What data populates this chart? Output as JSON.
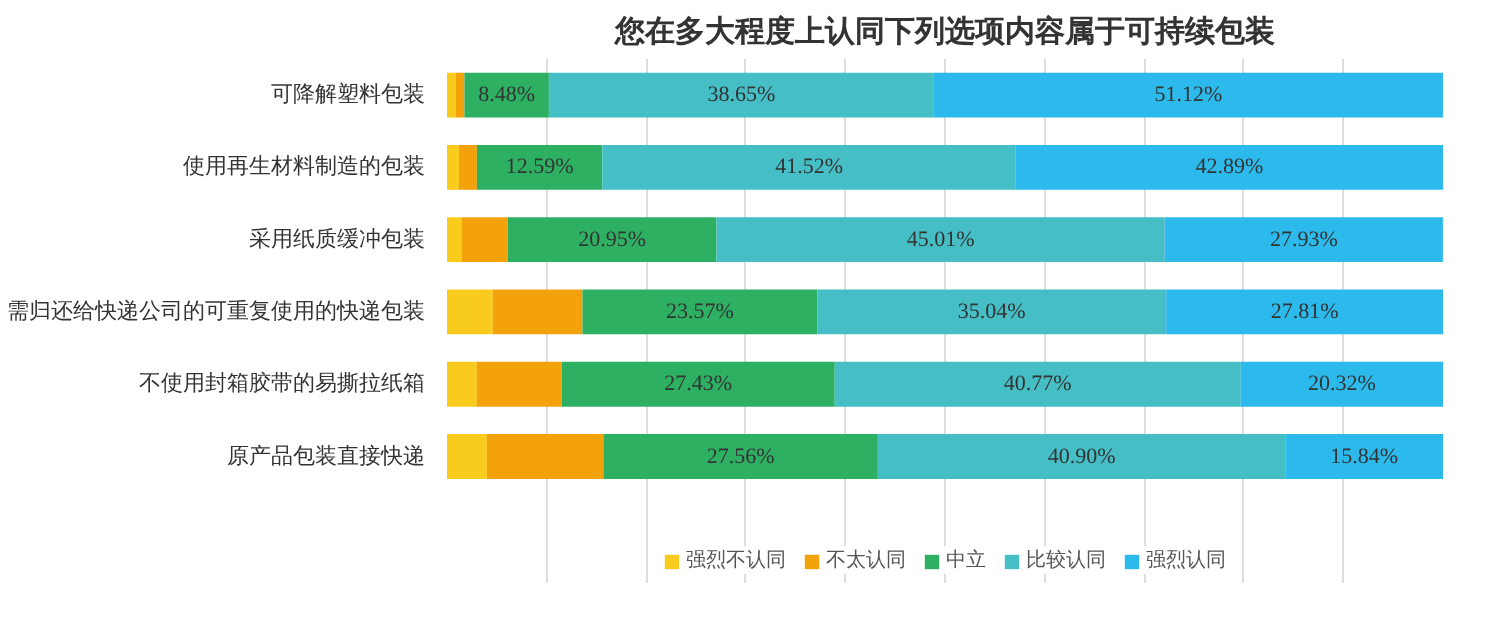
{
  "chart_data": {
    "type": "bar",
    "orientation": "horizontal",
    "stacked": true,
    "title": "您在多大程度上认同下列选项内容属于可持续包装",
    "categories": [
      "可降解塑料包装",
      "使用再生材料制造的包装",
      "采用纸质缓冲包装",
      "需归还给快递公司的可重复使用的快递包装",
      "不使用封箱胶带的易撕拉纸箱",
      "原产品包装直接快递"
    ],
    "series": [
      {
        "name": "强烈不认同",
        "color": "#f9cb1c",
        "values": [
          0.9,
          1.2,
          1.5,
          4.6,
          3.0,
          4.0
        ]
      },
      {
        "name": "不太认同",
        "color": "#f4a20c",
        "values": [
          0.85,
          1.8,
          4.6,
          9.0,
          8.5,
          11.7
        ]
      },
      {
        "name": "中立",
        "color": "#2eb063",
        "values": [
          8.48,
          12.59,
          20.95,
          23.57,
          27.43,
          27.56
        ],
        "value_labels": [
          "8.48%",
          "12.59%",
          "20.95%",
          "23.57%",
          "27.43%",
          "27.56%"
        ]
      },
      {
        "name": "比较认同",
        "color": "#45bec6",
        "values": [
          38.65,
          41.52,
          45.01,
          35.04,
          40.77,
          40.9
        ],
        "value_labels": [
          "38.65%",
          "41.52%",
          "45.01%",
          "35.04%",
          "40.77%",
          "40.90%"
        ]
      },
      {
        "name": "强烈认同",
        "color": "#2bbaeb",
        "values": [
          51.12,
          42.89,
          27.93,
          27.81,
          20.32,
          15.84
        ],
        "value_labels": [
          "51.12%",
          "42.89%",
          "27.93%",
          "27.81%",
          "20.32%",
          "15.84%"
        ]
      }
    ],
    "xlim": [
      0,
      100
    ],
    "grid": "x",
    "tick_labels": "y",
    "legend": "bottom"
  }
}
